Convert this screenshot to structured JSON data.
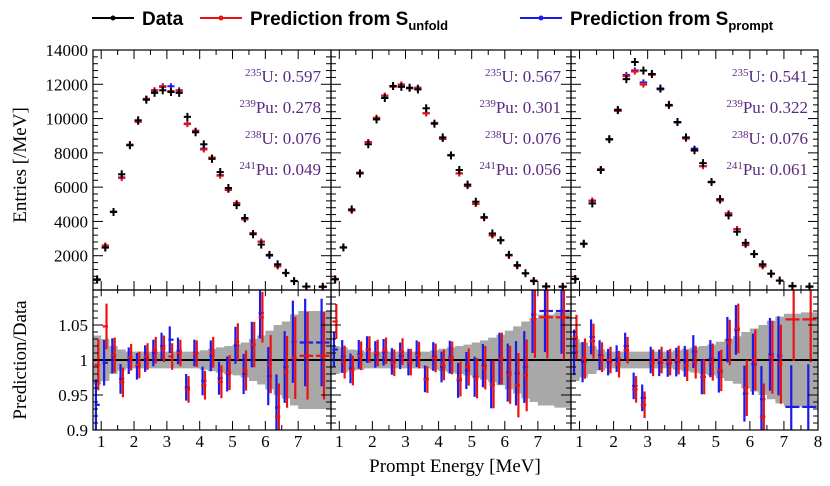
{
  "chart_data": {
    "type": "scatter",
    "title": "",
    "legend": {
      "placement": "top",
      "entries": [
        {
          "key": "data",
          "label": "Data",
          "color": "#000000"
        },
        {
          "key": "unfold",
          "label": "Prediction from S",
          "sub": "unfold",
          "color": "#ee1111"
        },
        {
          "key": "prompt",
          "label": "Prediction from S",
          "sub": "prompt",
          "color": "#1a1aee"
        }
      ]
    },
    "xlabel": "Prompt Energy [MeV]",
    "ylabel_top": "Entries [/MeV]",
    "ylabel_bottom": "Prediction/Data",
    "xlim": [
      0.75,
      8.0
    ],
    "ylim_top": [
      0,
      14000
    ],
    "ylim_bottom": [
      0.9,
      1.1
    ],
    "x_ticks": [
      "1",
      "2",
      "3",
      "4",
      "5",
      "6",
      "7",
      "8"
    ],
    "y_ticks_top": [
      "2000",
      "4000",
      "6000",
      "8000",
      "10000",
      "12000",
      "14000"
    ],
    "y_ticks_bottom": [
      "0.9",
      "0.95",
      "1",
      "1.05"
    ],
    "bin_edges": [
      0.75,
      1.0,
      1.25,
      1.5,
      1.75,
      2.0,
      2.25,
      2.5,
      2.75,
      3.0,
      3.25,
      3.5,
      3.75,
      4.0,
      4.25,
      4.5,
      4.75,
      5.0,
      5.25,
      5.5,
      5.75,
      6.0,
      6.25,
      6.5,
      6.75,
      7.0,
      7.5,
      8.0
    ],
    "panels": [
      {
        "name": "panel-1",
        "fractions": [
          {
            "iso": "235",
            "el": "U",
            "val": "0.597"
          },
          {
            "iso": "239",
            "el": "Pu",
            "val": "0.278"
          },
          {
            "iso": "238",
            "el": "U",
            "val": "0.076"
          },
          {
            "iso": "241",
            "el": "Pu",
            "val": "0.049"
          }
        ],
        "data": [
          620,
          2480,
          4550,
          6750,
          8450,
          9900,
          11100,
          11500,
          11650,
          11550,
          11500,
          10100,
          9200,
          8500,
          7650,
          6880,
          5950,
          4950,
          4200,
          3250,
          2650,
          2050,
          1500,
          1000,
          520,
          200,
          190
        ],
        "unfold_ratio": [
          0.993,
          1.048,
          1.007,
          0.968,
          1.004,
          0.993,
          1.005,
          1.014,
          1.016,
          1.005,
          1.01,
          0.958,
          1.009,
          0.964,
          1.011,
          0.969,
          0.982,
          1.026,
          0.985,
          1.022,
          1.061,
          0.994,
          0.919,
          0.983,
          1.003,
          1.006,
          1.006
        ],
        "prompt_ratio": [
          0.936,
          0.996,
          1.006,
          0.973,
          0.999,
          0.991,
          1.002,
          1.01,
          1.02,
          1.029,
          1.013,
          0.961,
          1.01,
          0.97,
          1.006,
          0.974,
          0.98,
          1.021,
          0.98,
          1.022,
          1.067,
          0.977,
          0.932,
          0.99,
          1.026,
          1.025,
          1.025
        ],
        "band": [
          0.035,
          0.03,
          0.02,
          0.015,
          0.012,
          0.012,
          0.012,
          0.012,
          0.012,
          0.012,
          0.012,
          0.012,
          0.012,
          0.014,
          0.016,
          0.018,
          0.02,
          0.022,
          0.025,
          0.03,
          0.035,
          0.042,
          0.05,
          0.055,
          0.065,
          0.07,
          0.07
        ]
      },
      {
        "name": "panel-2",
        "fractions": [
          {
            "iso": "235",
            "el": "U",
            "val": "0.567"
          },
          {
            "iso": "239",
            "el": "Pu",
            "val": "0.301"
          },
          {
            "iso": "238",
            "el": "U",
            "val": "0.076"
          },
          {
            "iso": "241",
            "el": "Pu",
            "val": "0.056"
          }
        ],
        "data": [
          620,
          2480,
          4700,
          6800,
          8500,
          9950,
          11200,
          11900,
          11850,
          11800,
          11700,
          10600,
          9700,
          8900,
          7850,
          7000,
          6150,
          5150,
          4250,
          3300,
          2900,
          2050,
          1450,
          980,
          520,
          200,
          190
        ],
        "unfold_ratio": [
          1.055,
          0.997,
          0.985,
          1.006,
          1.015,
          1.01,
          1.013,
          0.996,
          1.012,
          0.997,
          1.007,
          0.972,
          1.003,
          0.993,
          1.003,
          0.973,
          0.99,
          0.974,
          0.989,
          0.965,
          1.002,
          0.979,
          0.964,
          0.978,
          1.058,
          1.061,
          1.061
        ],
        "prompt_ratio": [
          1.015,
          1.005,
          0.988,
          1.008,
          1.015,
          1.008,
          1.011,
          0.998,
          1.006,
          0.997,
          1.009,
          0.973,
          1.005,
          0.99,
          1.004,
          0.971,
          0.985,
          0.976,
          0.992,
          0.965,
          1.002,
          0.982,
          0.981,
          0.99,
          1.065,
          1.07,
          1.07
        ],
        "band": [
          0.02,
          0.018,
          0.015,
          0.014,
          0.012,
          0.012,
          0.012,
          0.012,
          0.012,
          0.012,
          0.012,
          0.012,
          0.014,
          0.016,
          0.018,
          0.02,
          0.022,
          0.025,
          0.028,
          0.032,
          0.036,
          0.042,
          0.048,
          0.055,
          0.06,
          0.065,
          0.068
        ]
      },
      {
        "name": "panel-3",
        "fractions": [
          {
            "iso": "235",
            "el": "U",
            "val": "0.541"
          },
          {
            "iso": "239",
            "el": "Pu",
            "val": "0.322"
          },
          {
            "iso": "238",
            "el": "U",
            "val": "0.076"
          },
          {
            "iso": "241",
            "el": "Pu",
            "val": "0.061"
          }
        ],
        "data": [
          640,
          2700,
          5050,
          7000,
          8800,
          10500,
          12300,
          13300,
          12800,
          12600,
          11750,
          10800,
          9800,
          8900,
          8150,
          7400,
          6300,
          5300,
          4350,
          3400,
          2750,
          2100,
          1500,
          950,
          550,
          230,
          200
        ],
        "unfold_ratio": [
          1.032,
          1.002,
          1.027,
          1.004,
          1.0,
          0.994,
          1.014,
          0.958,
          0.936,
          0.996,
          1.0,
          0.997,
          1.0,
          0.992,
          0.997,
          0.976,
          0.997,
          0.985,
          1.025,
          1.045,
          0.96,
          1.0,
          0.919,
          1.004,
          0.994,
          1.058,
          1.058
        ],
        "prompt_ratio": [
          1.011,
          0.997,
          1.033,
          1.007,
          0.997,
          1.002,
          1.02,
          0.963,
          0.946,
          1.0,
          0.996,
          0.995,
          0.997,
          0.998,
          1.012,
          0.976,
          1.002,
          0.983,
          1.029,
          1.043,
          0.952,
          0.994,
          0.944,
          1.008,
          1.006,
          0.933,
          0.933
        ],
        "band": [
          0.03,
          0.025,
          0.02,
          0.015,
          0.012,
          0.012,
          0.012,
          0.012,
          0.012,
          0.012,
          0.012,
          0.012,
          0.014,
          0.016,
          0.018,
          0.02,
          0.022,
          0.026,
          0.03,
          0.034,
          0.04,
          0.045,
          0.05,
          0.056,
          0.062,
          0.066,
          0.068
        ]
      }
    ]
  }
}
